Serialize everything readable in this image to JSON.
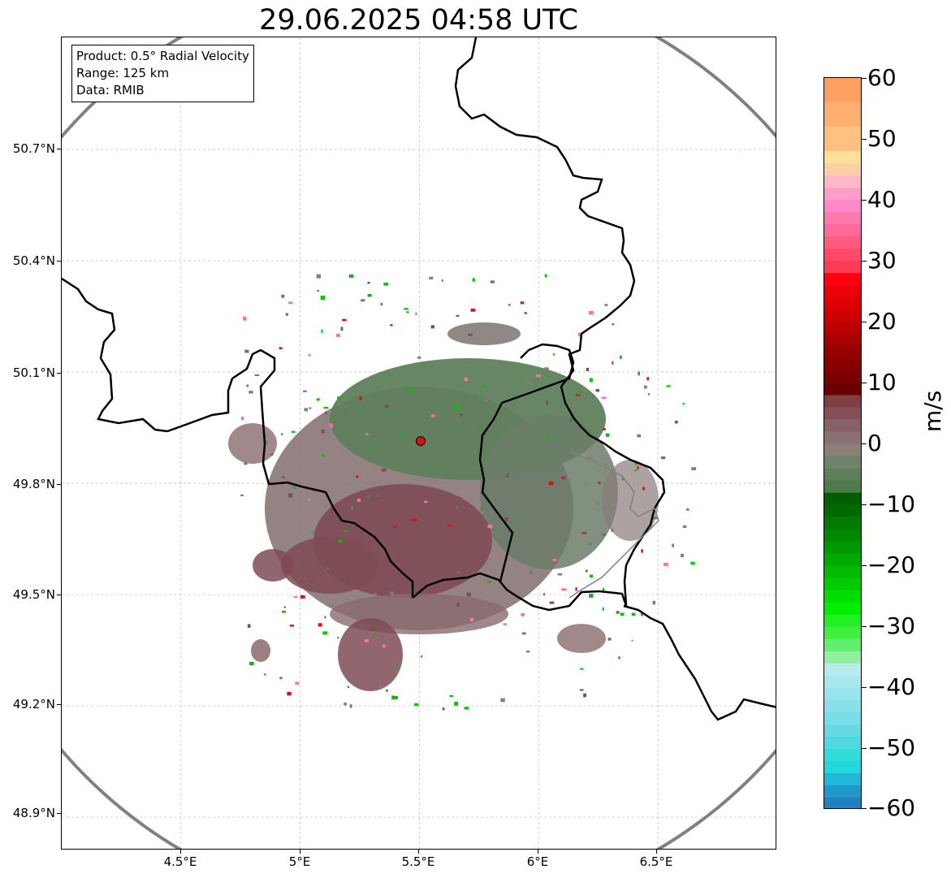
{
  "title": "29.06.2025 04:58 UTC",
  "info": {
    "product": "Product: 0.5° Radial Velocity",
    "range": "Range: 125 km",
    "data": "Data: RMIB"
  },
  "map": {
    "extent": {
      "lon": [
        4.0,
        7.0
      ],
      "lat": [
        48.8,
        51.1
      ]
    },
    "lat_ticks": [
      "50.7°N",
      "50.4°N",
      "50.1°N",
      "49.8°N",
      "49.5°N",
      "49.2°N",
      "48.9°N"
    ],
    "lat_values": [
      50.7,
      50.4,
      50.1,
      49.8,
      49.5,
      49.2,
      48.9
    ],
    "lon_ticks": [
      "4.5°E",
      "5°E",
      "5.5°E",
      "6°E",
      "6.5°E"
    ],
    "lon_values": [
      4.5,
      5.0,
      5.5,
      6.0,
      6.5
    ],
    "radar_site": {
      "lon": 5.505,
      "lat": 49.914
    },
    "range_ring_km": 125,
    "grid": true
  },
  "colorbar": {
    "label": "m/s",
    "min": -60,
    "max": 60,
    "tick_labels": [
      "60",
      "50",
      "40",
      "30",
      "20",
      "10",
      "0",
      "−10",
      "−20",
      "−30",
      "−40",
      "−50",
      "−60"
    ],
    "tick_values": [
      60,
      50,
      40,
      30,
      20,
      10,
      0,
      -10,
      -20,
      -30,
      -40,
      -50,
      -60
    ]
  },
  "colors": {
    "range_ring": "#808080",
    "border": "#000000",
    "radar_marker": "#dd1111",
    "approach": "#5f7f5c",
    "recede": "#7e4b55",
    "neutral": "#8a7a7a"
  }
}
